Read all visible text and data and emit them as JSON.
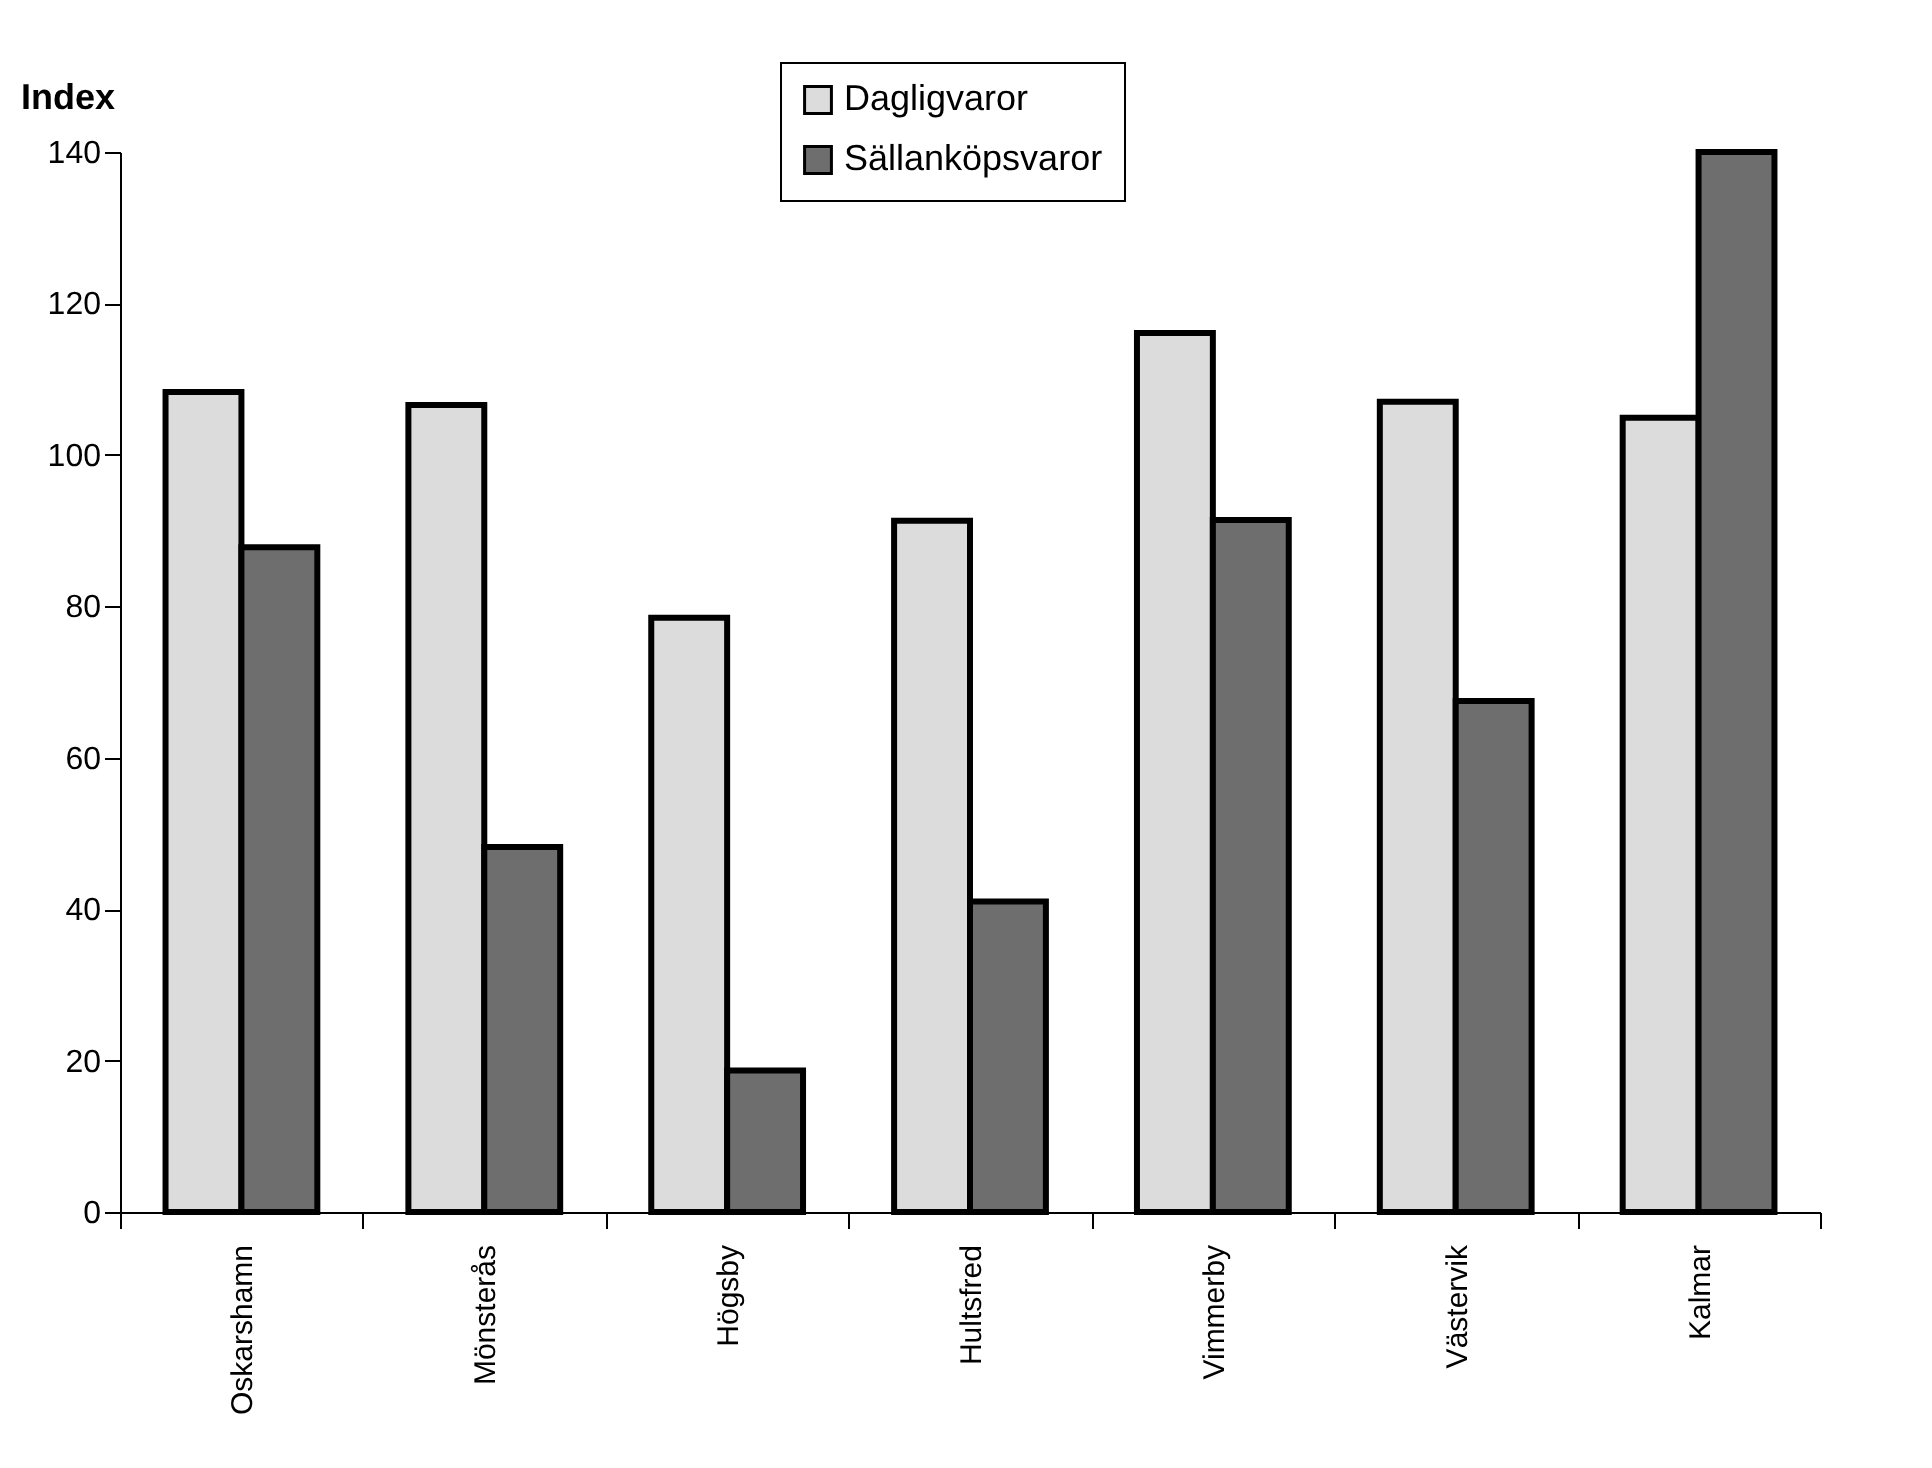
{
  "chart_data": {
    "type": "bar",
    "ylabel": "Index",
    "categories": [
      "Oskarshamn",
      "Mönsterås",
      "Högsby",
      "Hultsfred",
      "Vimmerby",
      "Västervik",
      "Kalmar"
    ],
    "series": [
      {
        "name": "Dagligvaror",
        "color": "#dcdcdc",
        "values": [
          108.3,
          106.6,
          78.5,
          91.3,
          116.1,
          107.0,
          104.9
        ]
      },
      {
        "name": "Sällanköpsvaror",
        "color": "#6e6e6e",
        "values": [
          87.8,
          48.2,
          18.7,
          41.0,
          91.4,
          67.5,
          140
        ]
      }
    ],
    "ylim": [
      0,
      140
    ],
    "yticks": [
      0,
      20,
      40,
      60,
      80,
      100,
      120,
      140
    ],
    "grid": false,
    "legend": "top"
  }
}
